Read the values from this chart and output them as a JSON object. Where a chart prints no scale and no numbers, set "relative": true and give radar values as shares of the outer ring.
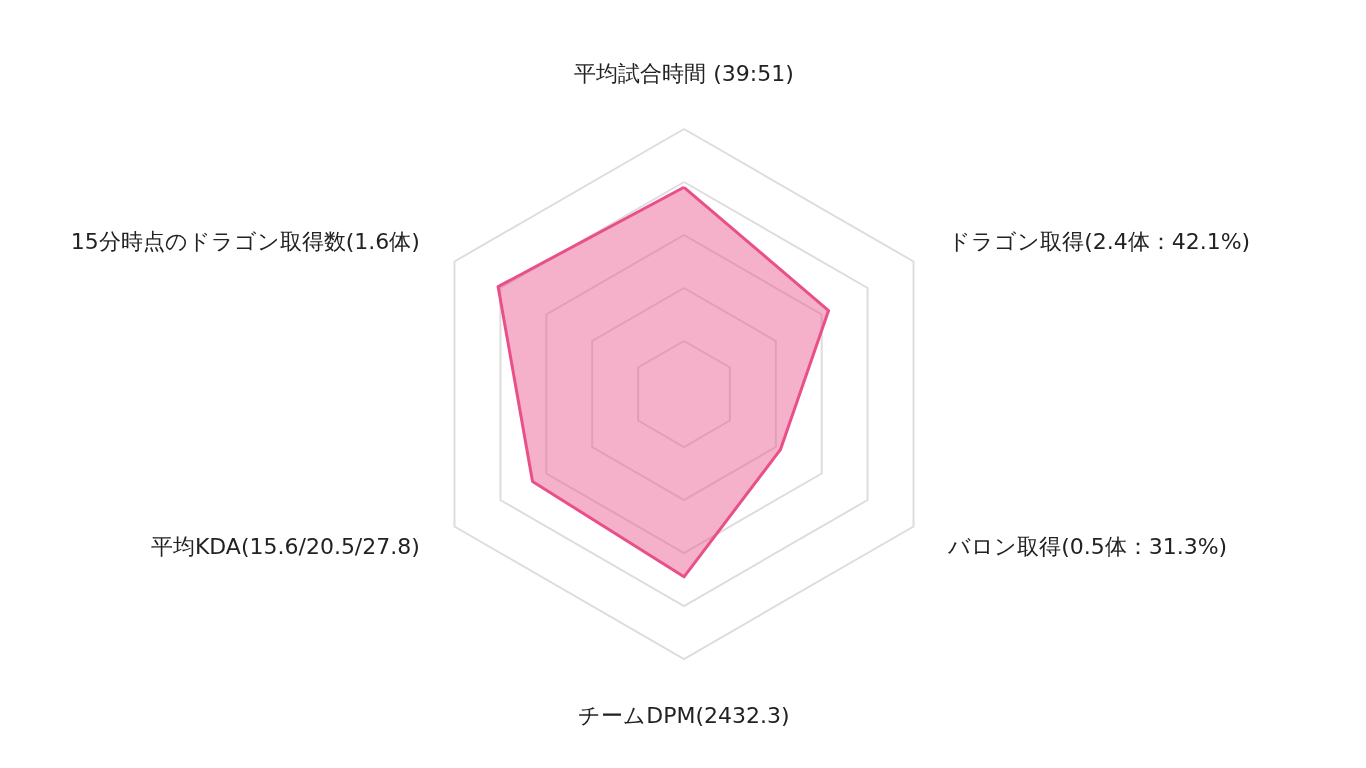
{
  "chart_data": {
    "type": "radar",
    "relative": true,
    "categories": [
      "平均試合時間 (39:51)",
      "ドラゴン取得(2.4体：42.1%)",
      "バロン取得(0.5体：31.3%)",
      "チームDPM(2432.3)",
      "平均KDA(15.6/20.5/27.8)",
      "15分時点のドラゴン取得数(1.6体)"
    ],
    "series": [
      {
        "color": "#e9508a",
        "values": [
          0.78,
          0.63,
          0.42,
          0.69,
          0.66,
          0.81
        ]
      }
    ]
  }
}
